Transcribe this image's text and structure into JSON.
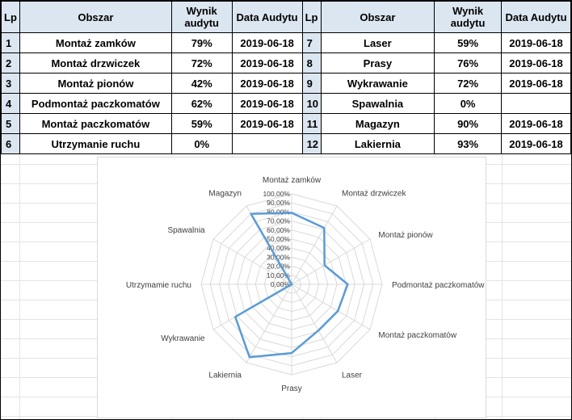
{
  "table": {
    "headers": {
      "lp": "Lp",
      "obszar": "Obszar",
      "wynik_line1": "Wynik",
      "wynik_line2": "audytu",
      "data": "Data Audytu"
    },
    "left_rows": [
      {
        "lp": "1",
        "obszar": "Montaż zamków",
        "wynik": "79%",
        "data": "2019-06-18"
      },
      {
        "lp": "2",
        "obszar": "Montaż drzwiczek",
        "wynik": "72%",
        "data": "2019-06-18"
      },
      {
        "lp": "3",
        "obszar": "Montaż pionów",
        "wynik": "42%",
        "data": "2019-06-18"
      },
      {
        "lp": "4",
        "obszar": "Podmontaż paczkomatów",
        "wynik": "62%",
        "data": "2019-06-18"
      },
      {
        "lp": "5",
        "obszar": "Montaż paczkomatów",
        "wynik": "59%",
        "data": "2019-06-18"
      },
      {
        "lp": "6",
        "obszar": "Utrzymanie ruchu",
        "wynik": "0%",
        "data": ""
      }
    ],
    "right_rows": [
      {
        "lp": "7",
        "obszar": "Laser",
        "wynik": "59%",
        "data": "2019-06-18"
      },
      {
        "lp": "8",
        "obszar": "Prasy",
        "wynik": "76%",
        "data": "2019-06-18"
      },
      {
        "lp": "9",
        "obszar": "Wykrawanie",
        "wynik": "72%",
        "data": "2019-06-18"
      },
      {
        "lp": "10",
        "obszar": "Spawalnia",
        "wynik": "0%",
        "data": ""
      },
      {
        "lp": "11",
        "obszar": "Magazyn",
        "wynik": "90%",
        "data": "2019-06-18"
      },
      {
        "lp": "12",
        "obszar": "Lakiernia",
        "wynik": "93%",
        "data": "2019-06-18"
      }
    ]
  },
  "chart_data": {
    "type": "radar",
    "categories": [
      "Montaż zamków",
      "Montaż drzwiczek",
      "Montaż pionów",
      "Podmontaż paczkomatów",
      "Montaż paczkomatów",
      "Laser",
      "Prasy",
      "Lakiernia",
      "Wykrawanie",
      "Utrzymamie ruchu",
      "Spawalnia",
      "Magazyn"
    ],
    "values": [
      0.79,
      0.72,
      0.42,
      0.62,
      0.59,
      0.59,
      0.76,
      0.93,
      0.72,
      0,
      0,
      0.9
    ],
    "radial_range": [
      0,
      1
    ],
    "radial_ticks": [
      "0,00%",
      "10,00%",
      "20,00%",
      "30,00%",
      "40,00%",
      "50,00%",
      "60,00%",
      "70,00%",
      "80,00%",
      "90,00%",
      "100,00%"
    ],
    "grid": true,
    "legend": "none",
    "series_color": "#5b9bd5"
  }
}
